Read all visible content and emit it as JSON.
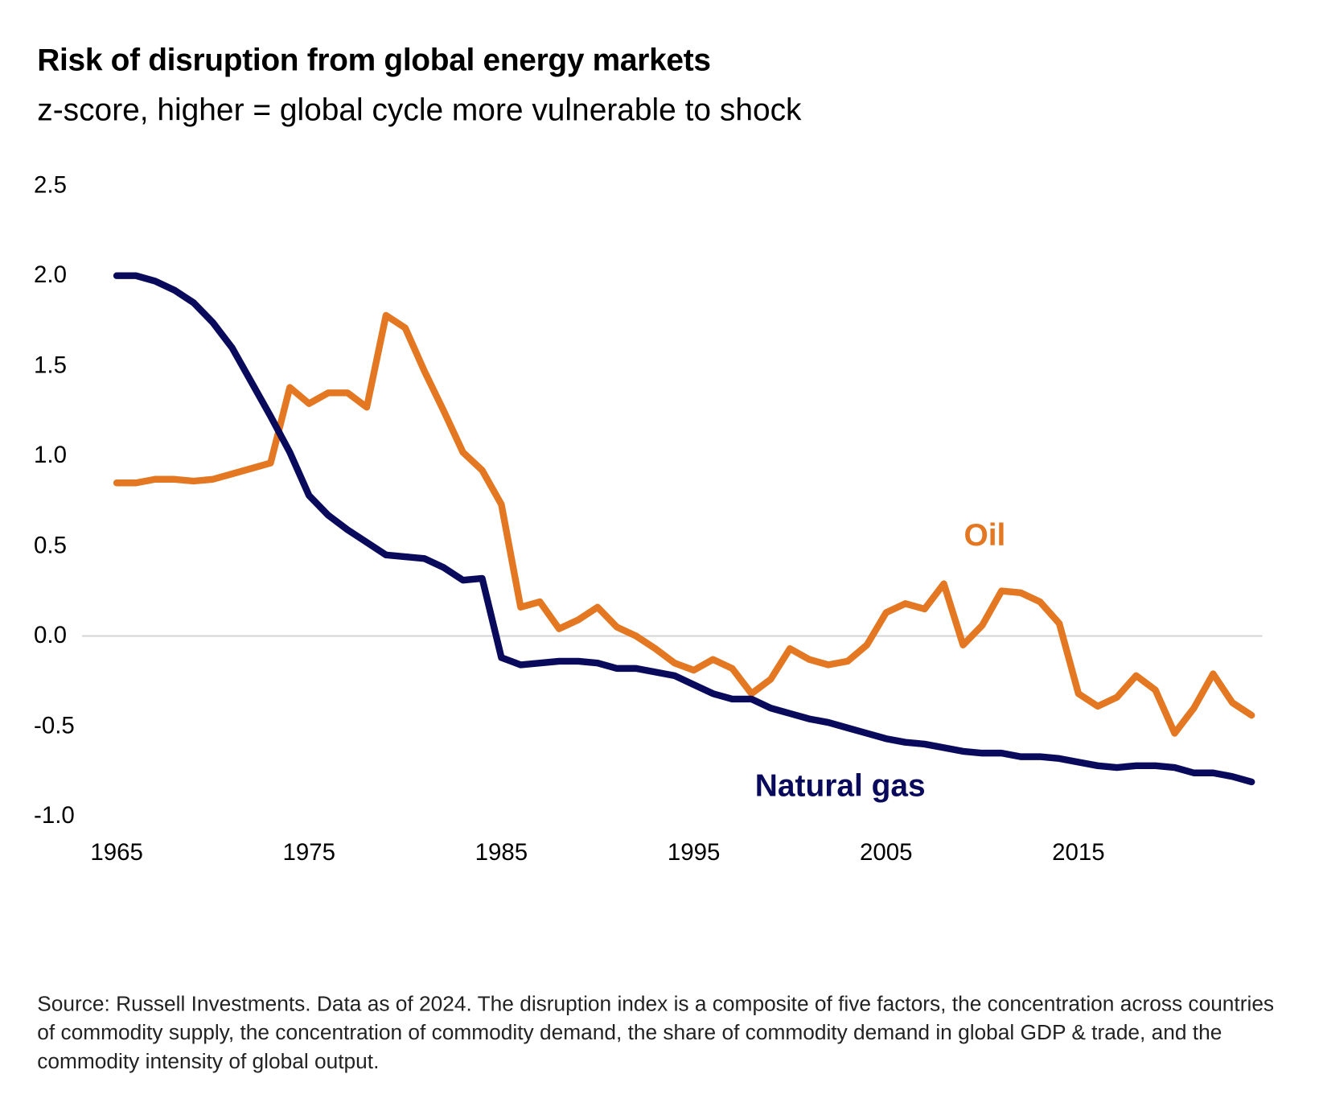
{
  "title": "Risk of disruption from global energy markets",
  "subtitle": "z-score, higher = global cycle more vulnerable to shock",
  "footnote": "Source: Russell Investments. Data as of 2024. The disruption index is a composite of five factors, the concentration across countries of commodity supply, the concentration of commodity demand, the share of commodity demand in global GDP & trade, and the commodity intensity of global output.",
  "chart_data": {
    "type": "line",
    "title": "Risk of disruption from global energy markets",
    "subtitle": "z-score, higher = global cycle more vulnerable to shock",
    "xlabel": "",
    "ylabel": "",
    "xlim": [
      1965,
      2024
    ],
    "ylim": [
      -1.0,
      2.5
    ],
    "y_ticks": [
      "2.5",
      "2.0",
      "1.5",
      "1.0",
      "0.5",
      "0.0",
      "-0.5",
      "-1.0"
    ],
    "y_tick_values": [
      2.5,
      2.0,
      1.5,
      1.0,
      0.5,
      0.0,
      -0.5,
      -1.0
    ],
    "x_ticks": [
      "1965",
      "1975",
      "1985",
      "1995",
      "2005",
      "2015"
    ],
    "x_tick_values": [
      1965,
      1975,
      1985,
      1995,
      2005,
      2015
    ],
    "grid": "zero line only",
    "legend": "direct labels",
    "x_start": 1965,
    "series": [
      {
        "name": "Oil",
        "color": "#E37722",
        "values": [
          0.85,
          0.85,
          0.87,
          0.87,
          0.86,
          0.87,
          0.9,
          0.93,
          0.96,
          1.38,
          1.29,
          1.35,
          1.35,
          1.27,
          1.78,
          1.71,
          1.47,
          1.25,
          1.02,
          0.92,
          0.73,
          0.16,
          0.19,
          0.04,
          0.09,
          0.16,
          0.05,
          0.0,
          -0.07,
          -0.15,
          -0.19,
          -0.13,
          -0.18,
          -0.32,
          -0.24,
          -0.07,
          -0.13,
          -0.16,
          -0.14,
          -0.05,
          0.13,
          0.18,
          0.15,
          0.29,
          -0.05,
          0.06,
          0.25,
          0.24,
          0.19,
          0.07,
          -0.32,
          -0.39,
          -0.34,
          -0.22,
          -0.3,
          -0.54,
          -0.4,
          -0.21,
          -0.37,
          -0.44
        ]
      },
      {
        "name": "Natural gas",
        "color": "#0A0A5C",
        "values": [
          2.0,
          2.0,
          1.97,
          1.92,
          1.85,
          1.74,
          1.6,
          1.41,
          1.22,
          1.02,
          0.78,
          0.67,
          0.59,
          0.52,
          0.45,
          0.44,
          0.43,
          0.38,
          0.31,
          0.32,
          -0.12,
          -0.16,
          -0.15,
          -0.14,
          -0.14,
          -0.15,
          -0.18,
          -0.18,
          -0.2,
          -0.22,
          -0.27,
          -0.32,
          -0.35,
          -0.35,
          -0.4,
          -0.43,
          -0.46,
          -0.48,
          -0.51,
          -0.54,
          -0.57,
          -0.59,
          -0.6,
          -0.62,
          -0.64,
          -0.65,
          -0.65,
          -0.67,
          -0.67,
          -0.68,
          -0.7,
          -0.72,
          -0.73,
          -0.72,
          -0.72,
          -0.73,
          -0.76,
          -0.76,
          -0.78,
          -0.81
        ]
      }
    ]
  }
}
